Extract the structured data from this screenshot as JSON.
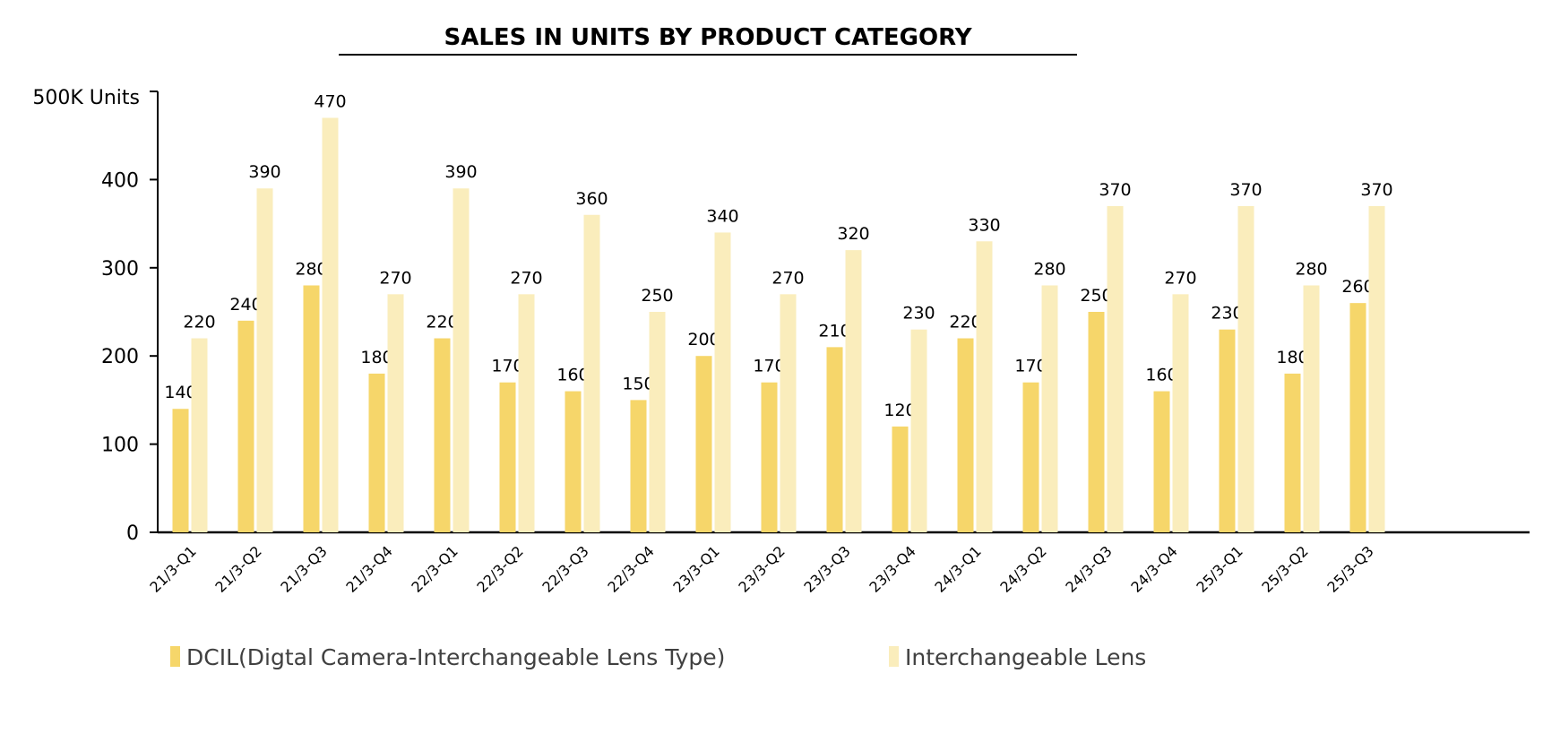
{
  "chart_data": {
    "type": "bar",
    "title": "SALES IN UNITS BY PRODUCT CATEGORY",
    "ylabel": "500K Units",
    "ylim": [
      0,
      500
    ],
    "yticks": [
      "0",
      "100",
      "200",
      "300",
      "400"
    ],
    "categories": [
      "21/3-Q1",
      "21/3-Q2",
      "21/3-Q3",
      "21/3-Q4",
      "22/3-Q1",
      "22/3-Q2",
      "22/3-Q3",
      "22/3-Q4",
      "23/3-Q1",
      "23/3-Q2",
      "23/3-Q3",
      "23/3-Q4",
      "24/3-Q1",
      "24/3-Q2",
      "24/3-Q3",
      "24/3-Q4",
      "25/3-Q1",
      "25/3-Q2",
      "25/3-Q3"
    ],
    "series": [
      {
        "name": "DCIL(Digtal Camera-Interchangeable Lens Type)",
        "color": "#F6D66A",
        "values": [
          140,
          240,
          280,
          180,
          220,
          170,
          160,
          150,
          200,
          170,
          210,
          120,
          220,
          170,
          250,
          160,
          230,
          180,
          260
        ]
      },
      {
        "name": "Interchangeable Lens",
        "color": "#FAEDBC",
        "values": [
          220,
          390,
          470,
          270,
          390,
          270,
          360,
          250,
          340,
          270,
          320,
          230,
          330,
          280,
          370,
          270,
          370,
          280,
          370
        ]
      }
    ],
    "legend": "bottom",
    "grid": false
  }
}
